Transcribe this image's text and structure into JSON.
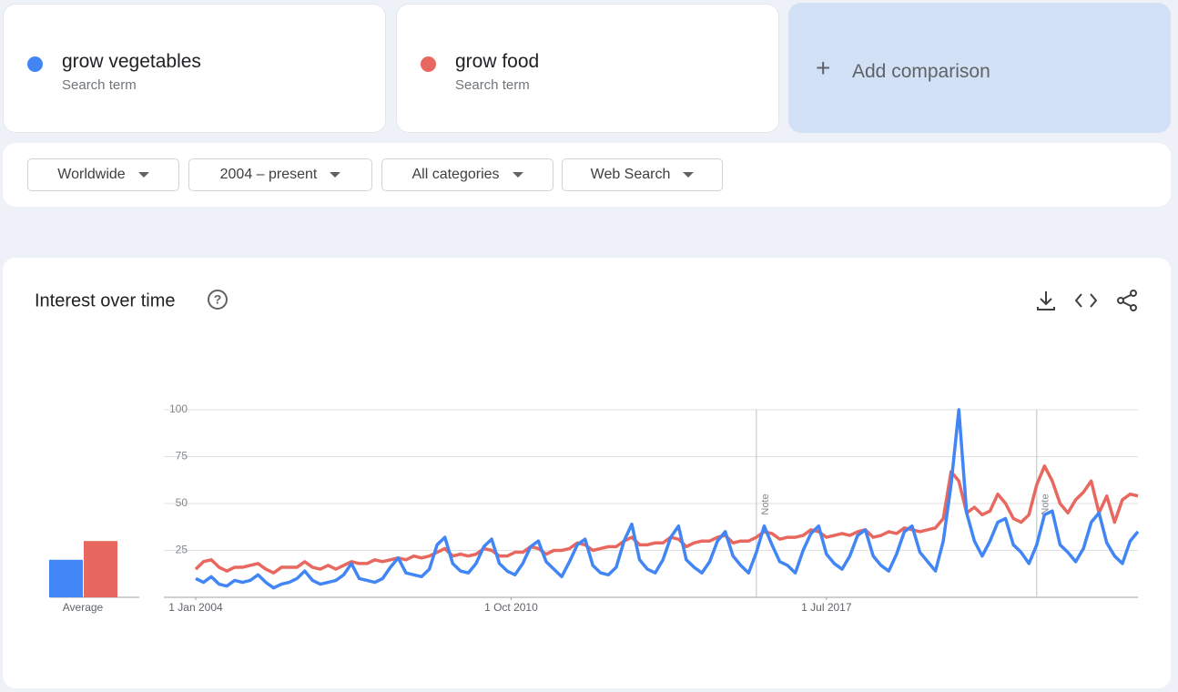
{
  "terms_header": {
    "add_comparison": "Add comparison"
  },
  "filters": [
    "Worldwide",
    "2004 – present",
    "All categories",
    "Web Search"
  ],
  "chart_data": {
    "type": "line",
    "title": "Interest over time",
    "average_label": "Average",
    "ylim": [
      0,
      100
    ],
    "yticks": [
      25,
      50,
      75,
      100
    ],
    "xlim": [
      "2004-01",
      "2024-03"
    ],
    "xticks": [
      {
        "value": "2004-01",
        "label": "1 Jan 2004"
      },
      {
        "value": "2010-10",
        "label": "1 Oct 2010"
      },
      {
        "value": "2017-07",
        "label": "1 Jul 2017"
      }
    ],
    "grid": true,
    "annotations": [
      {
        "x": "2016-01",
        "label": "Note"
      },
      {
        "x": "2022-01",
        "label": "Note"
      }
    ],
    "x": [
      "2004-01",
      "2004-03",
      "2004-05",
      "2004-07",
      "2004-09",
      "2004-11",
      "2005-01",
      "2005-03",
      "2005-05",
      "2005-07",
      "2005-09",
      "2005-11",
      "2006-01",
      "2006-03",
      "2006-05",
      "2006-07",
      "2006-09",
      "2006-11",
      "2007-01",
      "2007-03",
      "2007-05",
      "2007-07",
      "2007-09",
      "2007-11",
      "2008-01",
      "2008-03",
      "2008-05",
      "2008-07",
      "2008-09",
      "2008-11",
      "2009-01",
      "2009-03",
      "2009-05",
      "2009-07",
      "2009-09",
      "2009-11",
      "2010-01",
      "2010-03",
      "2010-05",
      "2010-07",
      "2010-09",
      "2010-11",
      "2011-01",
      "2011-03",
      "2011-05",
      "2011-07",
      "2011-09",
      "2011-11",
      "2012-01",
      "2012-03",
      "2012-05",
      "2012-07",
      "2012-09",
      "2012-11",
      "2013-01",
      "2013-03",
      "2013-05",
      "2013-07",
      "2013-09",
      "2013-11",
      "2014-01",
      "2014-03",
      "2014-05",
      "2014-07",
      "2014-09",
      "2014-11",
      "2015-01",
      "2015-03",
      "2015-05",
      "2015-07",
      "2015-09",
      "2015-11",
      "2016-01",
      "2016-03",
      "2016-05",
      "2016-07",
      "2016-09",
      "2016-11",
      "2017-01",
      "2017-03",
      "2017-05",
      "2017-07",
      "2017-09",
      "2017-11",
      "2018-01",
      "2018-03",
      "2018-05",
      "2018-07",
      "2018-09",
      "2018-11",
      "2019-01",
      "2019-03",
      "2019-05",
      "2019-07",
      "2019-09",
      "2019-11",
      "2020-01",
      "2020-03",
      "2020-05",
      "2020-07",
      "2020-09",
      "2020-11",
      "2021-01",
      "2021-03",
      "2021-05",
      "2021-07",
      "2021-09",
      "2021-11",
      "2022-01",
      "2022-03",
      "2022-05",
      "2022-07",
      "2022-09",
      "2022-11",
      "2023-01",
      "2023-03",
      "2023-05",
      "2023-07",
      "2023-09",
      "2023-11",
      "2024-01",
      "2024-03"
    ],
    "series": [
      {
        "name": "grow vegetables",
        "term_type": "Search term",
        "color": "#4285f4",
        "average": 20,
        "values": [
          10,
          8,
          11,
          7,
          6,
          9,
          8,
          9,
          12,
          8,
          5,
          7,
          8,
          10,
          14,
          9,
          7,
          8,
          9,
          12,
          18,
          10,
          9,
          8,
          10,
          16,
          21,
          13,
          12,
          11,
          15,
          28,
          32,
          18,
          14,
          13,
          18,
          27,
          31,
          18,
          14,
          12,
          18,
          27,
          30,
          19,
          15,
          11,
          19,
          28,
          31,
          17,
          13,
          12,
          16,
          30,
          39,
          20,
          15,
          13,
          20,
          32,
          38,
          20,
          16,
          13,
          19,
          30,
          35,
          22,
          17,
          13,
          24,
          38,
          28,
          19,
          17,
          13,
          25,
          34,
          38,
          23,
          18,
          15,
          22,
          33,
          36,
          22,
          17,
          14,
          23,
          35,
          38,
          24,
          19,
          14,
          30,
          60,
          100,
          45,
          30,
          22,
          30,
          40,
          42,
          28,
          24,
          18,
          28,
          44,
          46,
          28,
          24,
          19,
          26,
          40,
          45,
          29,
          22,
          18,
          30,
          35
        ]
      },
      {
        "name": "grow food",
        "term_type": "Search term",
        "color": "#e8675f",
        "average": 30,
        "values": [
          15,
          19,
          20,
          16,
          14,
          16,
          16,
          17,
          18,
          15,
          13,
          16,
          16,
          16,
          19,
          16,
          15,
          17,
          15,
          17,
          19,
          18,
          18,
          20,
          19,
          20,
          21,
          20,
          22,
          21,
          22,
          24,
          26,
          22,
          23,
          22,
          23,
          26,
          25,
          22,
          22,
          24,
          24,
          27,
          26,
          23,
          25,
          25,
          26,
          29,
          28,
          25,
          26,
          27,
          27,
          30,
          32,
          28,
          28,
          29,
          29,
          32,
          31,
          27,
          29,
          30,
          30,
          32,
          33,
          29,
          30,
          30,
          32,
          35,
          34,
          31,
          32,
          32,
          33,
          36,
          35,
          32,
          33,
          34,
          33,
          35,
          36,
          32,
          33,
          35,
          34,
          37,
          36,
          35,
          36,
          37,
          42,
          67,
          62,
          45,
          48,
          44,
          46,
          55,
          50,
          42,
          40,
          44,
          60,
          70,
          62,
          50,
          45,
          52,
          56,
          62,
          45,
          54,
          40,
          52,
          55,
          54
        ]
      }
    ]
  }
}
